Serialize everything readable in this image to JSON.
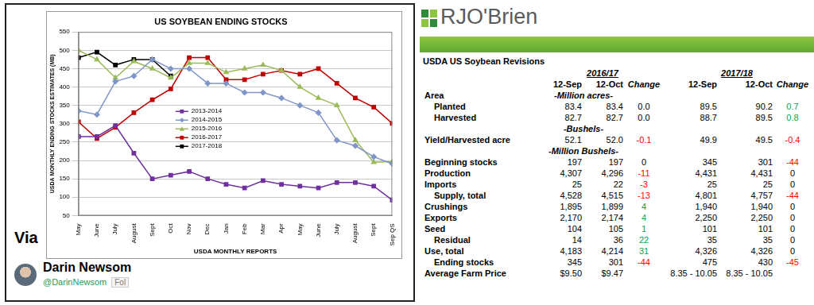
{
  "chart_data": {
    "type": "line",
    "title": "US SOYBEAN ENDING STOCKS",
    "x_label": "USDA MONTHLY REPORTS",
    "y_label": "USDA MONTHLY ENDING STOCKS ESTIMATES (MB)",
    "categories": [
      "May",
      "June",
      "July",
      "August",
      "Sept",
      "Oct",
      "Nov",
      "Dec",
      "Jan",
      "Feb",
      "Mar",
      "Apr",
      "May",
      "June",
      "July",
      "August",
      "Sept",
      "Sep QS"
    ],
    "series": [
      {
        "name": "2013-2014",
        "color": "#7030a0",
        "marker": "square",
        "values": [
          265,
          265,
          295,
          220,
          150,
          160,
          170,
          150,
          135,
          125,
          145,
          135,
          130,
          125,
          140,
          140,
          130,
          92
        ]
      },
      {
        "name": "2014-2015",
        "color": "#8096c8",
        "marker": "diamond",
        "values": [
          335,
          325,
          415,
          430,
          475,
          450,
          450,
          410,
          410,
          385,
          385,
          370,
          350,
          330,
          255,
          240,
          210,
          191
        ]
      },
      {
        "name": "2015-2016",
        "color": "#9bbb59",
        "marker": "triangle",
        "values": [
          500,
          475,
          425,
          470,
          450,
          425,
          465,
          465,
          440,
          450,
          460,
          445,
          400,
          370,
          350,
          255,
          195,
          197
        ]
      },
      {
        "name": "2016-2017",
        "color": "#c00000",
        "marker": "square",
        "values": [
          305,
          260,
          290,
          330,
          365,
          395,
          480,
          480,
          420,
          420,
          435,
          445,
          435,
          450,
          410,
          370,
          345,
          301
        ]
      },
      {
        "name": "2017-2018",
        "color": "#000000",
        "marker": "square",
        "values": [
          480,
          495,
          460,
          475,
          475,
          430,
          null,
          null,
          null,
          null,
          null,
          null,
          null,
          null,
          null,
          null,
          null,
          null
        ]
      }
    ],
    "ylim": [
      50,
      550
    ],
    "yticks": [
      50,
      100,
      150,
      200,
      250,
      300,
      350,
      400,
      450,
      500,
      550
    ],
    "grid": true,
    "legend": "center"
  },
  "credit": {
    "via": "Via",
    "name": "Darin Newsom",
    "handle": "@DarinNewsom",
    "follow": "Fol"
  },
  "header": {
    "logo": "RJO'Brien"
  },
  "table": {
    "title": "USDA US Soybean Revisions",
    "groups": [
      "2016/17",
      "2017/18"
    ],
    "columns": [
      "12-Sep",
      "12-Oct",
      "Change",
      "12-Sep",
      "12-Oct",
      "Change"
    ],
    "rows": [
      {
        "label": "Area",
        "unit": "-Million acres-"
      },
      {
        "label": "Planted",
        "indent": true,
        "cells": [
          "83.4",
          "83.4",
          "0.0",
          "89.5",
          "90.2",
          "0.7"
        ]
      },
      {
        "label": "Harvested",
        "indent": true,
        "cells": [
          "82.7",
          "82.7",
          "0.0",
          "88.7",
          "89.5",
          "0.8"
        ]
      },
      {
        "unit": "-Bushels-"
      },
      {
        "label": "Yield/Harvested acre",
        "cells": [
          "52.1",
          "52.0",
          "-0.1",
          "49.9",
          "49.5",
          "-0.4"
        ]
      },
      {
        "unit": "-Million Bushels-"
      },
      {
        "label": "Beginning stocks",
        "cells": [
          "197",
          "197",
          "0",
          "345",
          "301",
          "-44"
        ]
      },
      {
        "label": "Production",
        "cells": [
          "4,307",
          "4,296",
          "-11",
          "4,431",
          "4,431",
          "0"
        ]
      },
      {
        "label": "Imports",
        "cells": [
          "25",
          "22",
          "-3",
          "25",
          "25",
          "0"
        ]
      },
      {
        "label": "Supply, total",
        "indent": true,
        "cells": [
          "4,528",
          "4,515",
          "-13",
          "4,801",
          "4,757",
          "-44"
        ]
      },
      {
        "label": "Crushings",
        "cells": [
          "1,895",
          "1,899",
          "4",
          "1,940",
          "1,940",
          "0"
        ]
      },
      {
        "label": "Exports",
        "cells": [
          "2,170",
          "2,174",
          "4",
          "2,250",
          "2,250",
          "0"
        ]
      },
      {
        "label": "Seed",
        "cells": [
          "104",
          "105",
          "1",
          "101",
          "101",
          "0"
        ]
      },
      {
        "label": "Residual",
        "indent": true,
        "cells": [
          "14",
          "36",
          "22",
          "35",
          "35",
          "0"
        ]
      },
      {
        "label": "Use, total",
        "cells": [
          "4,183",
          "4,214",
          "31",
          "4,326",
          "4,326",
          "0"
        ]
      },
      {
        "label": "Ending stocks",
        "indent": true,
        "cells": [
          "345",
          "301",
          "-44",
          "475",
          "430",
          "-45"
        ]
      },
      {
        "label": "Average Farm Price",
        "cells": [
          "$9.50",
          "$9.47",
          null,
          "8.35 - 10.05",
          "8.35 - 10.05",
          null
        ]
      }
    ]
  }
}
